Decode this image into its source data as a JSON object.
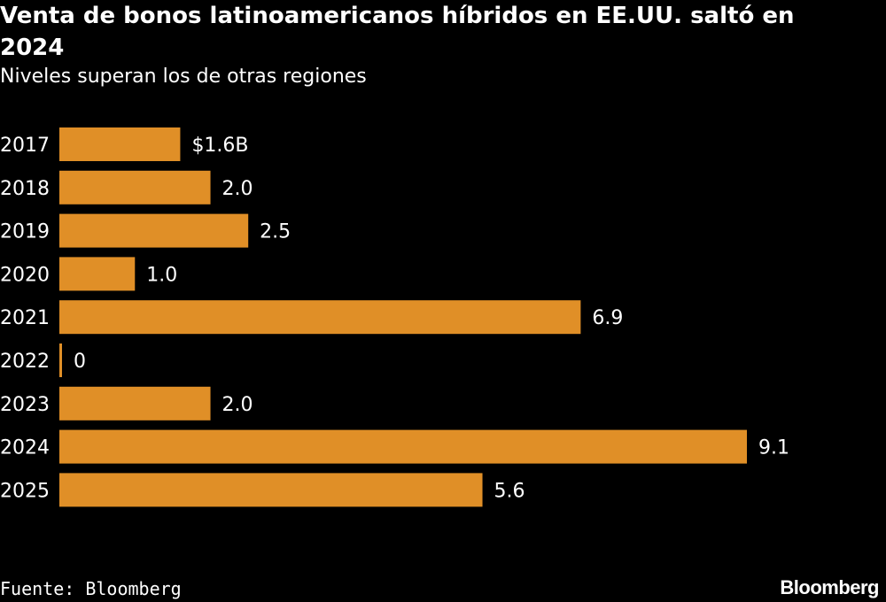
{
  "chart_data": {
    "type": "bar",
    "orientation": "horizontal",
    "title": "Venta de bonos latinoamericanos híbridos en EE.UU. saltó en 2024",
    "subtitle": "Niveles superan los de otras regiones",
    "categories": [
      "2017",
      "2018",
      "2019",
      "2020",
      "2021",
      "2022",
      "2023",
      "2024",
      "2025"
    ],
    "values": [
      1.6,
      2.0,
      2.5,
      1.0,
      6.9,
      0,
      2.0,
      9.1,
      5.6
    ],
    "data_labels": [
      "$1.6B",
      "2.0",
      "2.5",
      "1.0",
      "6.9",
      "0",
      "2.0",
      "9.1",
      "5.6"
    ],
    "xlabel": "",
    "ylabel": "",
    "xlim": [
      0,
      9.1
    ],
    "grid": false,
    "legend": "none"
  },
  "footer": {
    "source": "Fuente: Bloomberg",
    "brand": "Bloomberg"
  },
  "colors": {
    "background": "#000000",
    "bar": "#E08F27",
    "text": "#FFFFFF"
  }
}
